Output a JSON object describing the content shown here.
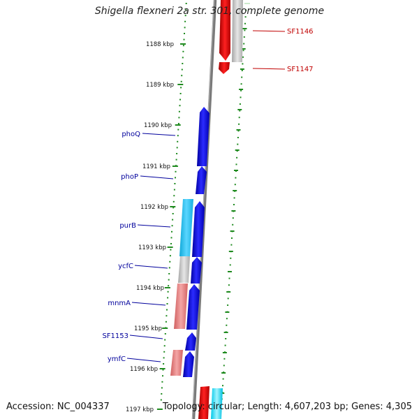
{
  "title": "Shigella flexneri 2a str. 301, complete genome",
  "accession": "Accession: NC_004337",
  "summary": "Topology: circular; Length: 4,607,203 bp; Genes: 4,305",
  "ticks": [
    "1188 kbp",
    "1189 kbp",
    "1190 kbp",
    "1191 kbp",
    "1192 kbp",
    "1193 kbp",
    "1194 kbp",
    "1195 kbp",
    "1196 kbp",
    "1197 kbp"
  ],
  "genes_reverse": [
    "SF1146",
    "SF1147"
  ],
  "genes_forward": [
    "phoQ",
    "phoP",
    "purB",
    "ycfC",
    "mnmA",
    "SF1153",
    "ymfC"
  ],
  "colors": {
    "forward_gene": "#0000e0",
    "reverse_gene": "#e00000",
    "cyan_gene": "#33c3ef",
    "grey_gene": "#c0c0c0",
    "pink_gene": "#e88080",
    "dots": "#1f8a1f",
    "backbone": "#808080",
    "forward_label": "#00009c",
    "reverse_label": "#c00000"
  }
}
